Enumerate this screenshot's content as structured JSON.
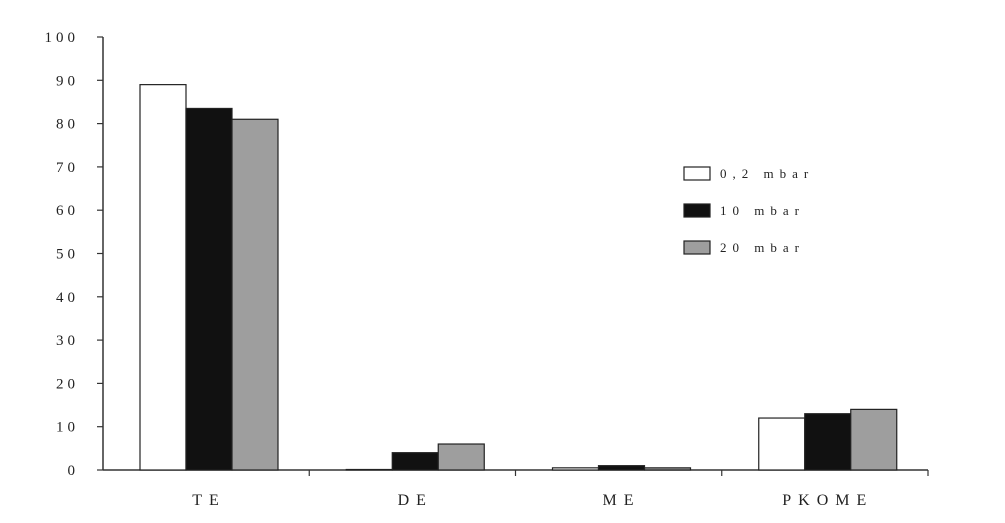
{
  "chart_data": {
    "type": "bar",
    "title": "",
    "xlabel": "",
    "ylabel": "",
    "categories": [
      "TE",
      "DE",
      "ME",
      "PKOME"
    ],
    "series": [
      {
        "name": "0,2 mbar",
        "color": "#ffffff",
        "values": [
          89,
          0,
          0.5,
          12
        ]
      },
      {
        "name": "10 mbar",
        "color": "#111111",
        "values": [
          83.5,
          4,
          1,
          13
        ]
      },
      {
        "name": "20 mbar",
        "color": "#9e9e9e",
        "values": [
          81,
          6,
          0.5,
          14
        ]
      }
    ],
    "yticks": [
      "0",
      "10",
      "20",
      "30",
      "40",
      "50",
      "60",
      "70",
      "80",
      "90",
      "100"
    ],
    "ylim": [
      0,
      100
    ],
    "grid": false,
    "legend_position": "right"
  }
}
